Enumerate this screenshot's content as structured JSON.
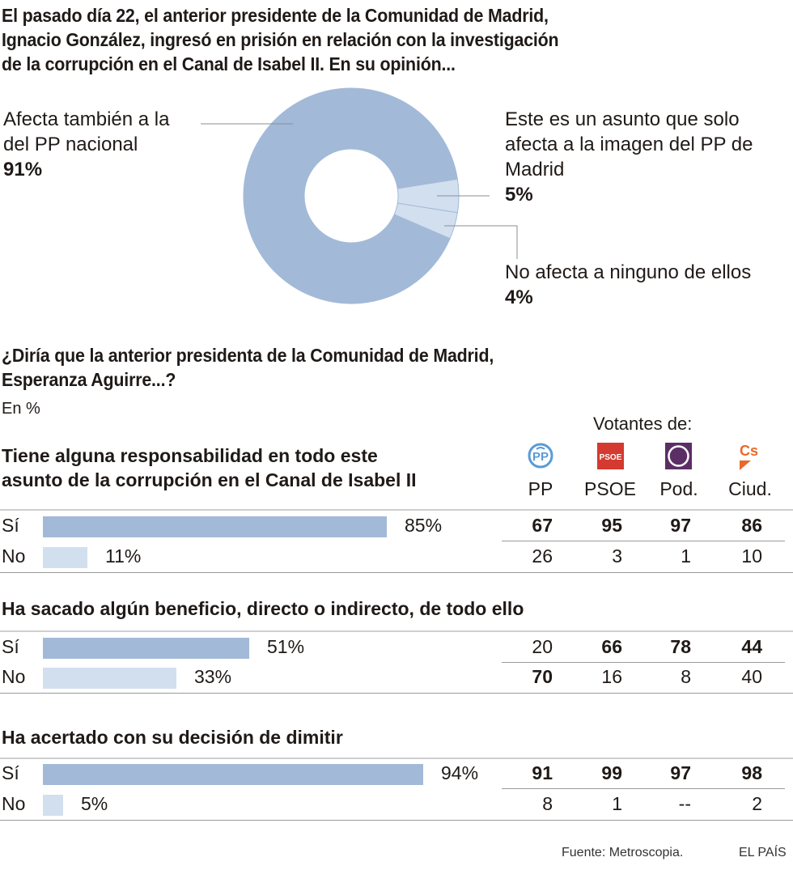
{
  "title": "El pasado día 22, el anterior presidente de la Comunidad de Madrid, Ignacio González, ingresó en prisión en relación con la investigación de la corrupción en el Canal de Isabel II. En su opinión...",
  "title_lines": [
    "El pasado día 22, el anterior presidente de la Comunidad de Madrid,",
    "Ignacio González, ingresó en prisión en relación con la investigación",
    "de la corrupción en el Canal de Isabel II. En su opinión..."
  ],
  "chart_data": [
    {
      "type": "pie",
      "donut": true,
      "title": "El pasado día 22, el anterior presidente de la Comunidad de Madrid, Ignacio González, ingresó en prisión en relación con la investigación de la corrupción en el Canal de Isabel II. En su opinión...",
      "slices": [
        {
          "label": "Afecta también a la del PP nacional",
          "label_lines": [
            "Afecta también a la",
            "del PP nacional"
          ],
          "value": 91,
          "value_label": "91%",
          "color": "#a2bad8"
        },
        {
          "label": "Este es un asunto que solo afecta a la imagen del PP de Madrid",
          "label_lines": [
            "Este es un asunto que solo",
            "afecta a la imagen del PP de",
            "Madrid"
          ],
          "value": 5,
          "value_label": "5%",
          "color": "#d2dfef"
        },
        {
          "label": "No afecta a ninguno de ellos",
          "label_lines": [
            "No afecta a ninguno de ellos"
          ],
          "value": 4,
          "value_label": "4%",
          "color": "#d2dfef"
        }
      ]
    },
    {
      "type": "bar",
      "title": "¿Diría que la anterior presidenta de la Comunidad de Madrid, Esperanza Aguirre...?",
      "title_lines": [
        "¿Diría que la anterior presidenta de la Comunidad de Madrid,",
        "Esperanza Aguirre...?"
      ],
      "unit_label": "En %",
      "voters_header": "Votantes de:",
      "parties": [
        {
          "name": "PP",
          "icon": "pp-logo-icon",
          "color": "#5a9bd5"
        },
        {
          "name": "PSOE",
          "icon": "psoe-logo-icon",
          "color": "#d43a2f"
        },
        {
          "name": "Pod.",
          "icon": "podemos-logo-icon",
          "color": "#5b2f66"
        },
        {
          "name": "Ciud.",
          "icon": "ciudadanos-logo-icon",
          "color": "#e86a2a"
        }
      ],
      "questions": [
        {
          "title_lines": [
            "Tiene alguna responsabilidad en todo este",
            "asunto de la corrupción en el Canal de Isabel II"
          ],
          "rows": [
            {
              "label": "Sí",
              "value": 85,
              "value_label": "85%",
              "by_party": [
                "67",
                "95",
                "97",
                "86"
              ],
              "bold": [
                true,
                true,
                true,
                true
              ]
            },
            {
              "label": "No",
              "value": 11,
              "value_label": "11%",
              "by_party": [
                "26",
                "3",
                "1",
                "10"
              ],
              "bold": [
                false,
                false,
                false,
                false
              ]
            }
          ]
        },
        {
          "title_lines": [
            "Ha sacado algún beneficio, directo o indirecto, de todo ello"
          ],
          "rows": [
            {
              "label": "Sí",
              "value": 51,
              "value_label": "51%",
              "by_party": [
                "20",
                "66",
                "78",
                "44"
              ],
              "bold": [
                false,
                true,
                true,
                true
              ]
            },
            {
              "label": "No",
              "value": 33,
              "value_label": "33%",
              "by_party": [
                "70",
                "16",
                "8",
                "40"
              ],
              "bold": [
                true,
                false,
                false,
                false
              ]
            }
          ]
        },
        {
          "title_lines": [
            "Ha acertado con su decisión de dimitir"
          ],
          "rows": [
            {
              "label": "Sí",
              "value": 94,
              "value_label": "94%",
              "by_party": [
                "91",
                "99",
                "97",
                "98"
              ],
              "bold": [
                true,
                true,
                true,
                true
              ]
            },
            {
              "label": "No",
              "value": 5,
              "value_label": "5%",
              "by_party": [
                "8",
                "1",
                "--",
                "2"
              ],
              "bold": [
                false,
                false,
                false,
                false
              ]
            }
          ]
        }
      ],
      "xlim": [
        0,
        100
      ]
    }
  ],
  "footer": {
    "source": "Fuente: Metroscopia.",
    "brand": "EL PAÍS"
  }
}
